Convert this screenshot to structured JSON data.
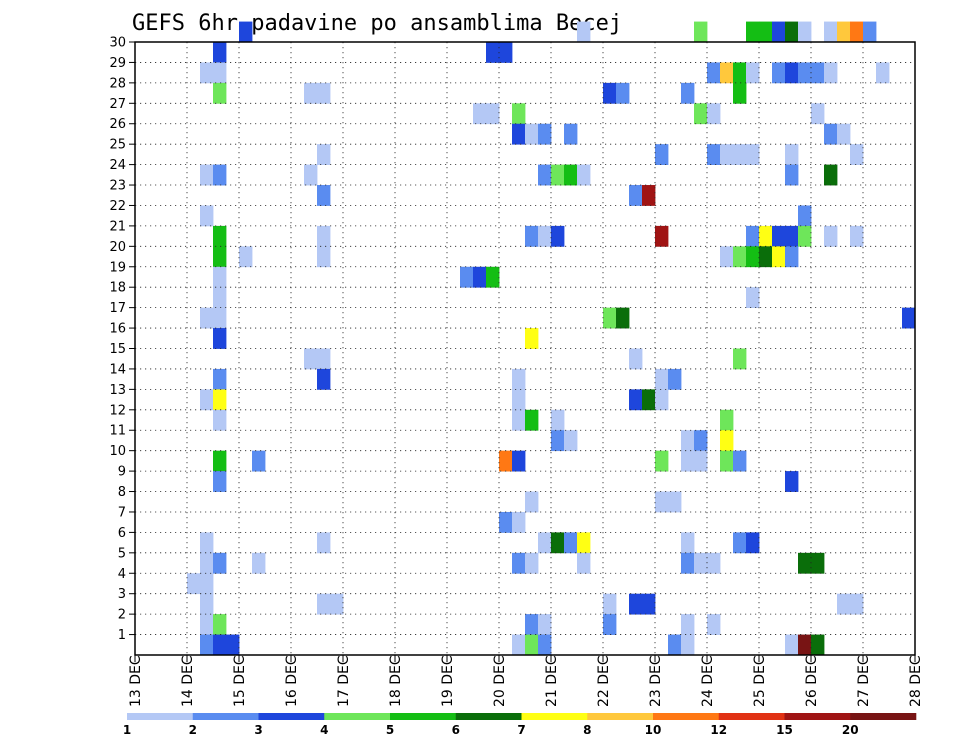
{
  "chart_data": {
    "type": "heatmap",
    "title": "GEFS 6hr padavine po ansamblima Becej",
    "xlabel": "",
    "ylabel": "",
    "x_axis": {
      "unit": "6h step",
      "range": [
        0,
        60
      ],
      "tick_labels": [
        "13 DEC",
        "14 DEC",
        "15 DEC",
        "16 DEC",
        "17 DEC",
        "18 DEC",
        "19 DEC",
        "20 DEC",
        "21 DEC",
        "22 DEC",
        "23 DEC",
        "24 DEC",
        "25 DEC",
        "26 DEC",
        "27 DEC",
        "28 DEC"
      ]
    },
    "y_axis": {
      "range": [
        0,
        30
      ],
      "tick_labels": [
        "1",
        "2",
        "3",
        "4",
        "5",
        "6",
        "7",
        "8",
        "9",
        "10",
        "11",
        "12",
        "13",
        "14",
        "15",
        "16",
        "17",
        "18",
        "19",
        "20",
        "21",
        "22",
        "23",
        "24",
        "25",
        "26",
        "27",
        "28",
        "29",
        "30"
      ]
    },
    "grid": "dotted",
    "legend_placement": "bottom",
    "levels": [
      "1",
      "2",
      "3",
      "4",
      "5",
      "6",
      "7",
      "8",
      "10",
      "12",
      "15",
      "20"
    ],
    "colors": [
      "#b4c8f5",
      "#5a8cf0",
      "#1e46dc",
      "#6ee65a",
      "#14be14",
      "#0a6e0a",
      "#ffff14",
      "#ffc83c",
      "#ff7814",
      "#e13214",
      "#a01414",
      "#781414"
    ],
    "comment_cells": "each cell: [member (y row), 6h step start (x), class index into colors]",
    "cells": [
      [
        30,
        8,
        2
      ],
      [
        30,
        34,
        0
      ],
      [
        30,
        43,
        3
      ],
      [
        30,
        47,
        4
      ],
      [
        30,
        48,
        4
      ],
      [
        30,
        49,
        2
      ],
      [
        30,
        50,
        5
      ],
      [
        30,
        51,
        0
      ],
      [
        30,
        53,
        0
      ],
      [
        30,
        54,
        7
      ],
      [
        30,
        55,
        8
      ],
      [
        30,
        56,
        1
      ],
      [
        29,
        6,
        2
      ],
      [
        29,
        27,
        2
      ],
      [
        29,
        28,
        2
      ],
      [
        28,
        5,
        0
      ],
      [
        28,
        6,
        0
      ],
      [
        28,
        44,
        1
      ],
      [
        28,
        45,
        7
      ],
      [
        28,
        46,
        4
      ],
      [
        28,
        47,
        0
      ],
      [
        28,
        49,
        1
      ],
      [
        28,
        50,
        2
      ],
      [
        28,
        51,
        1
      ],
      [
        28,
        52,
        1
      ],
      [
        28,
        53,
        0
      ],
      [
        28,
        57,
        0
      ],
      [
        27,
        6,
        3
      ],
      [
        27,
        13,
        0
      ],
      [
        27,
        14,
        0
      ],
      [
        27,
        36,
        2
      ],
      [
        27,
        37,
        1
      ],
      [
        27,
        42,
        1
      ],
      [
        27,
        46,
        4
      ],
      [
        26,
        26,
        0
      ],
      [
        26,
        27,
        0
      ],
      [
        26,
        29,
        3
      ],
      [
        26,
        43,
        3
      ],
      [
        26,
        44,
        0
      ],
      [
        26,
        52,
        0
      ],
      [
        25,
        29,
        2
      ],
      [
        25,
        30,
        0
      ],
      [
        25,
        31,
        1
      ],
      [
        25,
        33,
        1
      ],
      [
        25,
        53,
        1
      ],
      [
        25,
        54,
        0
      ],
      [
        24,
        14,
        0
      ],
      [
        24,
        40,
        1
      ],
      [
        24,
        44,
        1
      ],
      [
        24,
        45,
        0
      ],
      [
        24,
        46,
        0
      ],
      [
        24,
        47,
        0
      ],
      [
        24,
        50,
        0
      ],
      [
        24,
        55,
        0
      ],
      [
        23,
        5,
        0
      ],
      [
        23,
        6,
        1
      ],
      [
        23,
        13,
        0
      ],
      [
        23,
        31,
        1
      ],
      [
        23,
        32,
        3
      ],
      [
        23,
        33,
        4
      ],
      [
        23,
        34,
        0
      ],
      [
        23,
        50,
        1
      ],
      [
        23,
        53,
        5
      ],
      [
        22,
        14,
        1
      ],
      [
        22,
        38,
        1
      ],
      [
        22,
        39,
        10
      ],
      [
        21,
        5,
        0
      ],
      [
        21,
        51,
        1
      ],
      [
        20,
        6,
        4
      ],
      [
        20,
        14,
        0
      ],
      [
        20,
        30,
        1
      ],
      [
        20,
        31,
        0
      ],
      [
        20,
        32,
        2
      ],
      [
        20,
        40,
        10
      ],
      [
        20,
        47,
        1
      ],
      [
        20,
        48,
        6
      ],
      [
        20,
        49,
        2
      ],
      [
        20,
        50,
        2
      ],
      [
        20,
        51,
        3
      ],
      [
        20,
        53,
        0
      ],
      [
        20,
        55,
        0
      ],
      [
        19,
        6,
        4
      ],
      [
        19,
        8,
        0
      ],
      [
        19,
        14,
        0
      ],
      [
        19,
        45,
        0
      ],
      [
        19,
        46,
        3
      ],
      [
        19,
        47,
        4
      ],
      [
        19,
        48,
        5
      ],
      [
        19,
        49,
        6
      ],
      [
        19,
        50,
        1
      ],
      [
        18,
        6,
        0
      ],
      [
        18,
        25,
        1
      ],
      [
        18,
        26,
        2
      ],
      [
        18,
        27,
        4
      ],
      [
        17,
        6,
        0
      ],
      [
        17,
        47,
        0
      ],
      [
        16,
        5,
        0
      ],
      [
        16,
        6,
        0
      ],
      [
        16,
        36,
        3
      ],
      [
        16,
        37,
        5
      ],
      [
        16,
        59,
        2
      ],
      [
        15,
        6,
        2
      ],
      [
        15,
        30,
        6
      ],
      [
        14,
        13,
        0
      ],
      [
        14,
        14,
        0
      ],
      [
        14,
        38,
        0
      ],
      [
        14,
        46,
        3
      ],
      [
        13,
        6,
        1
      ],
      [
        13,
        14,
        2
      ],
      [
        13,
        29,
        0
      ],
      [
        13,
        40,
        0
      ],
      [
        13,
        41,
        1
      ],
      [
        12,
        5,
        0
      ],
      [
        12,
        6,
        6
      ],
      [
        12,
        29,
        0
      ],
      [
        12,
        38,
        2
      ],
      [
        12,
        39,
        5
      ],
      [
        12,
        40,
        0
      ],
      [
        11,
        6,
        0
      ],
      [
        11,
        29,
        0
      ],
      [
        11,
        30,
        4
      ],
      [
        11,
        32,
        0
      ],
      [
        11,
        45,
        3
      ],
      [
        10,
        32,
        1
      ],
      [
        10,
        33,
        0
      ],
      [
        10,
        42,
        0
      ],
      [
        10,
        43,
        1
      ],
      [
        10,
        45,
        6
      ],
      [
        9,
        6,
        4
      ],
      [
        9,
        9,
        1
      ],
      [
        9,
        28,
        8
      ],
      [
        9,
        29,
        2
      ],
      [
        9,
        40,
        3
      ],
      [
        9,
        42,
        0
      ],
      [
        9,
        43,
        0
      ],
      [
        9,
        45,
        3
      ],
      [
        9,
        46,
        1
      ],
      [
        8,
        6,
        1
      ],
      [
        8,
        50,
        2
      ],
      [
        7,
        30,
        0
      ],
      [
        7,
        40,
        0
      ],
      [
        7,
        41,
        0
      ],
      [
        6,
        28,
        1
      ],
      [
        6,
        29,
        0
      ],
      [
        5,
        5,
        0
      ],
      [
        5,
        14,
        0
      ],
      [
        5,
        31,
        0
      ],
      [
        5,
        32,
        5
      ],
      [
        5,
        33,
        1
      ],
      [
        5,
        34,
        6
      ],
      [
        5,
        42,
        0
      ],
      [
        5,
        46,
        1
      ],
      [
        5,
        47,
        2
      ],
      [
        4,
        5,
        0
      ],
      [
        4,
        6,
        1
      ],
      [
        4,
        9,
        0
      ],
      [
        4,
        29,
        1
      ],
      [
        4,
        30,
        0
      ],
      [
        4,
        34,
        0
      ],
      [
        4,
        42,
        1
      ],
      [
        4,
        43,
        0
      ],
      [
        4,
        44,
        0
      ],
      [
        4,
        51,
        5
      ],
      [
        4,
        52,
        5
      ],
      [
        3,
        4,
        0
      ],
      [
        3,
        5,
        0
      ],
      [
        2,
        5,
        0
      ],
      [
        2,
        14,
        0
      ],
      [
        2,
        15,
        0
      ],
      [
        2,
        36,
        0
      ],
      [
        2,
        38,
        2
      ],
      [
        2,
        39,
        2
      ],
      [
        2,
        54,
        0
      ],
      [
        2,
        55,
        0
      ],
      [
        1,
        5,
        0
      ],
      [
        1,
        6,
        3
      ],
      [
        1,
        30,
        1
      ],
      [
        1,
        31,
        0
      ],
      [
        1,
        36,
        1
      ],
      [
        1,
        42,
        0
      ],
      [
        1,
        44,
        0
      ],
      [
        0,
        5,
        1
      ],
      [
        0,
        6,
        2
      ],
      [
        0,
        7,
        2
      ],
      [
        0,
        29,
        0
      ],
      [
        0,
        30,
        3
      ],
      [
        0,
        31,
        1
      ],
      [
        0,
        41,
        1
      ],
      [
        0,
        42,
        0
      ],
      [
        0,
        50,
        0
      ],
      [
        0,
        51,
        11
      ],
      [
        0,
        52,
        5
      ]
    ]
  }
}
